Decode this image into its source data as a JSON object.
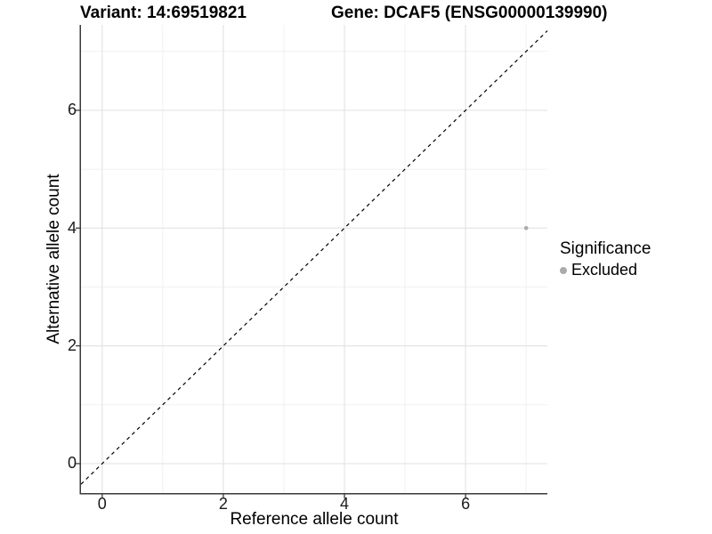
{
  "titles": {
    "variant": "Variant: 14:69519821",
    "gene": "Gene: DCAF5 (ENSG00000139990)"
  },
  "axes": {
    "x_label": "Reference allele count",
    "y_label": "Alternative allele count",
    "x_tick_labels": [
      "0",
      "2",
      "4",
      "6"
    ],
    "y_tick_labels": [
      "0",
      "2",
      "4",
      "6"
    ]
  },
  "legend": {
    "title": "Significance",
    "items": [
      {
        "label": "Excluded",
        "color": "#ababab"
      }
    ]
  },
  "colors": {
    "grid_major": "#e4e4e4",
    "grid_minor": "#f1f1f1",
    "axis_line": "#3a3a3a",
    "tick_mark": "#3a3a3a",
    "reference_line": "#000000",
    "point": "#ababab",
    "background": "#ffffff"
  },
  "chart_data": {
    "type": "scatter",
    "title": "Variant: 14:69519821 / Gene: DCAF5 (ENSG00000139990)",
    "xlabel": "Reference allele count",
    "ylabel": "Alternative allele count",
    "xlim": [
      -0.35,
      7.35
    ],
    "ylim": [
      -0.5,
      7.45
    ],
    "x_ticks": [
      0,
      2,
      4,
      6
    ],
    "y_ticks": [
      0,
      2,
      4,
      6
    ],
    "x_minor_ticks": [
      1,
      3,
      5,
      7
    ],
    "y_minor_ticks": [
      1,
      3,
      5,
      7
    ],
    "grid": true,
    "legend_position": "right",
    "legend_title": "Significance",
    "series": [
      {
        "name": "Excluded",
        "color": "#ababab",
        "points": [
          {
            "x": 7,
            "y": 4
          }
        ]
      }
    ],
    "reference_line": {
      "equation": "y = x",
      "style": "dashed",
      "color": "#000000"
    }
  }
}
